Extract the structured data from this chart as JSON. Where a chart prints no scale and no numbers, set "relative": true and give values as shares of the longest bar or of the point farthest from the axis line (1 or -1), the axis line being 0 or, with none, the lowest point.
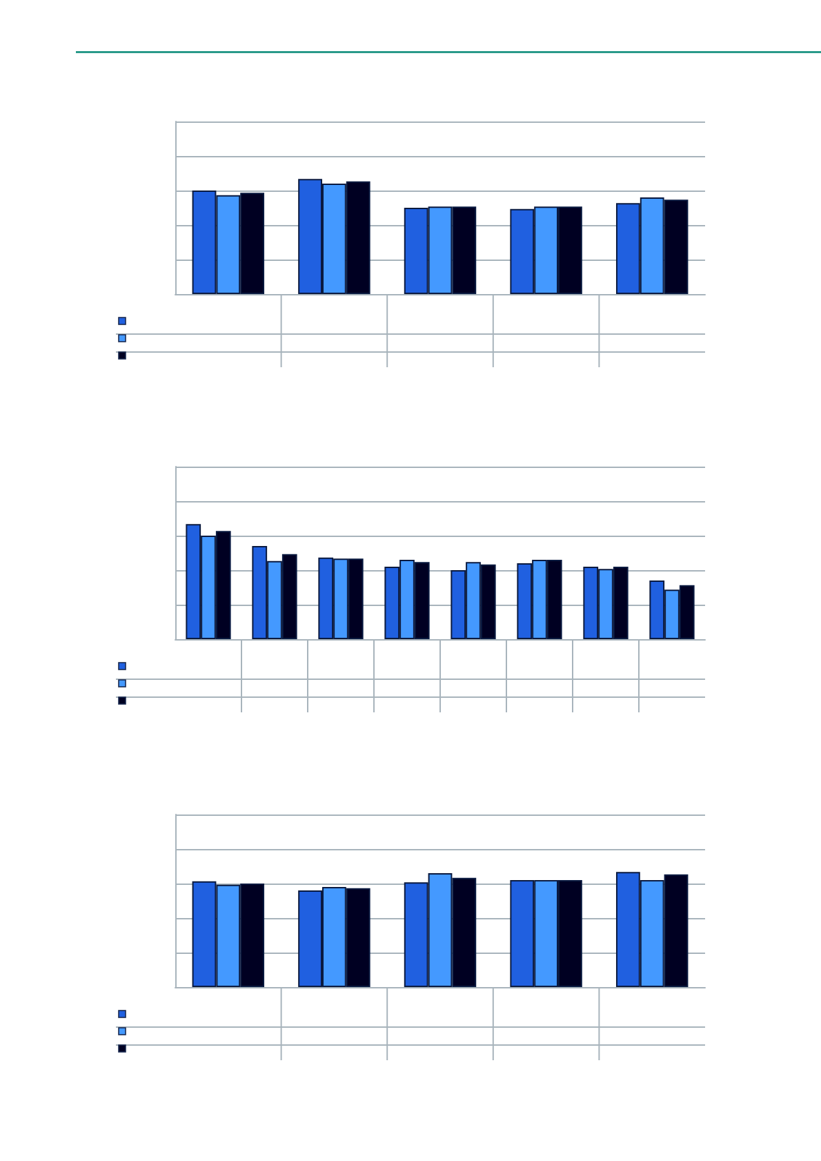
{
  "chart_data": [
    {
      "type": "bar",
      "relative": true,
      "grid": "y",
      "categories": [
        null,
        null,
        null,
        null,
        null
      ],
      "series": [
        {
          "color": "#2060e0",
          "values": [
            0.9,
            1,
            0.75,
            0.74,
            0.79
          ]
        },
        {
          "color": "#4499ff",
          "values": [
            0.86,
            0.96,
            0.76,
            0.76,
            0.84
          ]
        },
        {
          "color": "#000022",
          "values": [
            0.88,
            0.98,
            0.76,
            0.76,
            0.82
          ]
        }
      ]
    },
    {
      "type": "bar",
      "relative": true,
      "grid": "y",
      "categories": [
        null,
        null,
        null,
        null,
        null,
        null,
        null,
        null
      ],
      "series": [
        {
          "color": "#2060e0",
          "values": [
            1,
            0.81,
            0.71,
            0.63,
            0.6,
            0.66,
            0.63,
            0.51
          ]
        },
        {
          "color": "#4499ff",
          "values": [
            0.9,
            0.68,
            0.7,
            0.69,
            0.67,
            0.69,
            0.61,
            0.43
          ]
        },
        {
          "color": "#000022",
          "values": [
            0.94,
            0.74,
            0.7,
            0.67,
            0.65,
            0.69,
            0.63,
            0.47
          ]
        }
      ]
    },
    {
      "type": "bar",
      "relative": true,
      "grid": "y",
      "categories": [
        null,
        null,
        null,
        null,
        null
      ],
      "series": [
        {
          "color": "#2060e0",
          "values": [
            0.92,
            0.84,
            0.91,
            0.93,
            1
          ]
        },
        {
          "color": "#4499ff",
          "values": [
            0.89,
            0.87,
            0.99,
            0.93,
            0.93
          ]
        },
        {
          "color": "#000022",
          "values": [
            0.9,
            0.86,
            0.95,
            0.93,
            0.98
          ]
        }
      ]
    }
  ]
}
